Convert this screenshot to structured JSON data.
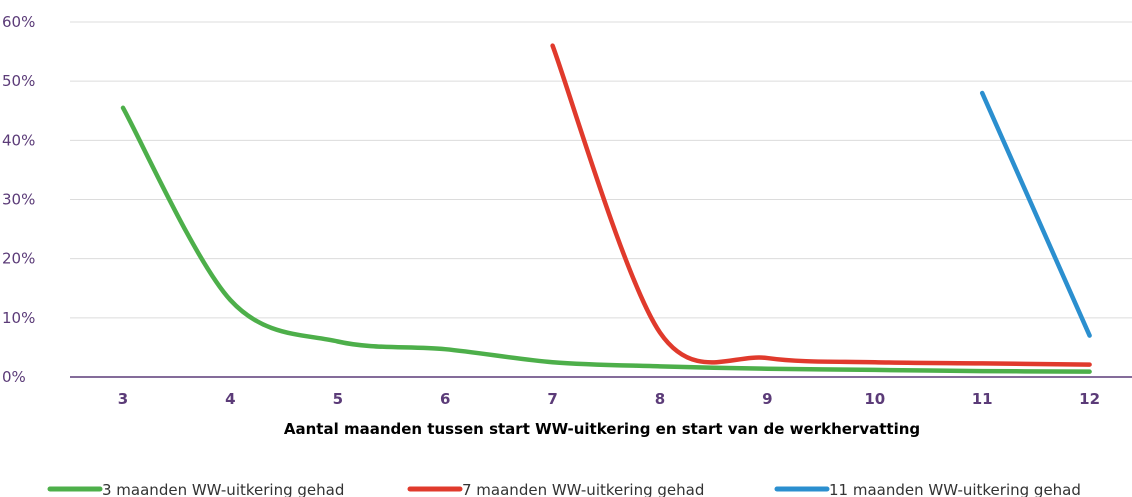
{
  "chart_data": {
    "type": "line",
    "xlabel": "Aantal maanden tussen start WW-uitkering en start van de werkhervatting",
    "ylabel": "",
    "ylim": [
      0,
      60
    ],
    "y_ticks": [
      "0%",
      "10%",
      "20%",
      "30%",
      "40%",
      "50%",
      "60%"
    ],
    "categories": [
      "3",
      "4",
      "5",
      "6",
      "7",
      "8",
      "9",
      "10",
      "11",
      "12"
    ],
    "grid": true,
    "legend_position": "bottom",
    "series": [
      {
        "name": "3 maanden WW-uitkering gehad",
        "color": "#4daf4a",
        "x": [
          3,
          4,
          5,
          6,
          7,
          8,
          9,
          10,
          11,
          12
        ],
        "values": [
          45.5,
          13,
          6,
          4.7,
          2.5,
          1.8,
          1.4,
          1.2,
          1.0,
          0.9
        ]
      },
      {
        "name": "7 maanden WW-uitkering gehad",
        "color": "#e03a2c",
        "x": [
          7,
          8,
          9,
          10,
          11,
          12
        ],
        "values": [
          56,
          7.5,
          3.2,
          2.5,
          2.3,
          2.1
        ]
      },
      {
        "name": "11 maanden WW-uitkering gehad",
        "color": "#2b8fcf",
        "x": [
          11,
          12
        ],
        "values": [
          48,
          7
        ]
      }
    ]
  }
}
